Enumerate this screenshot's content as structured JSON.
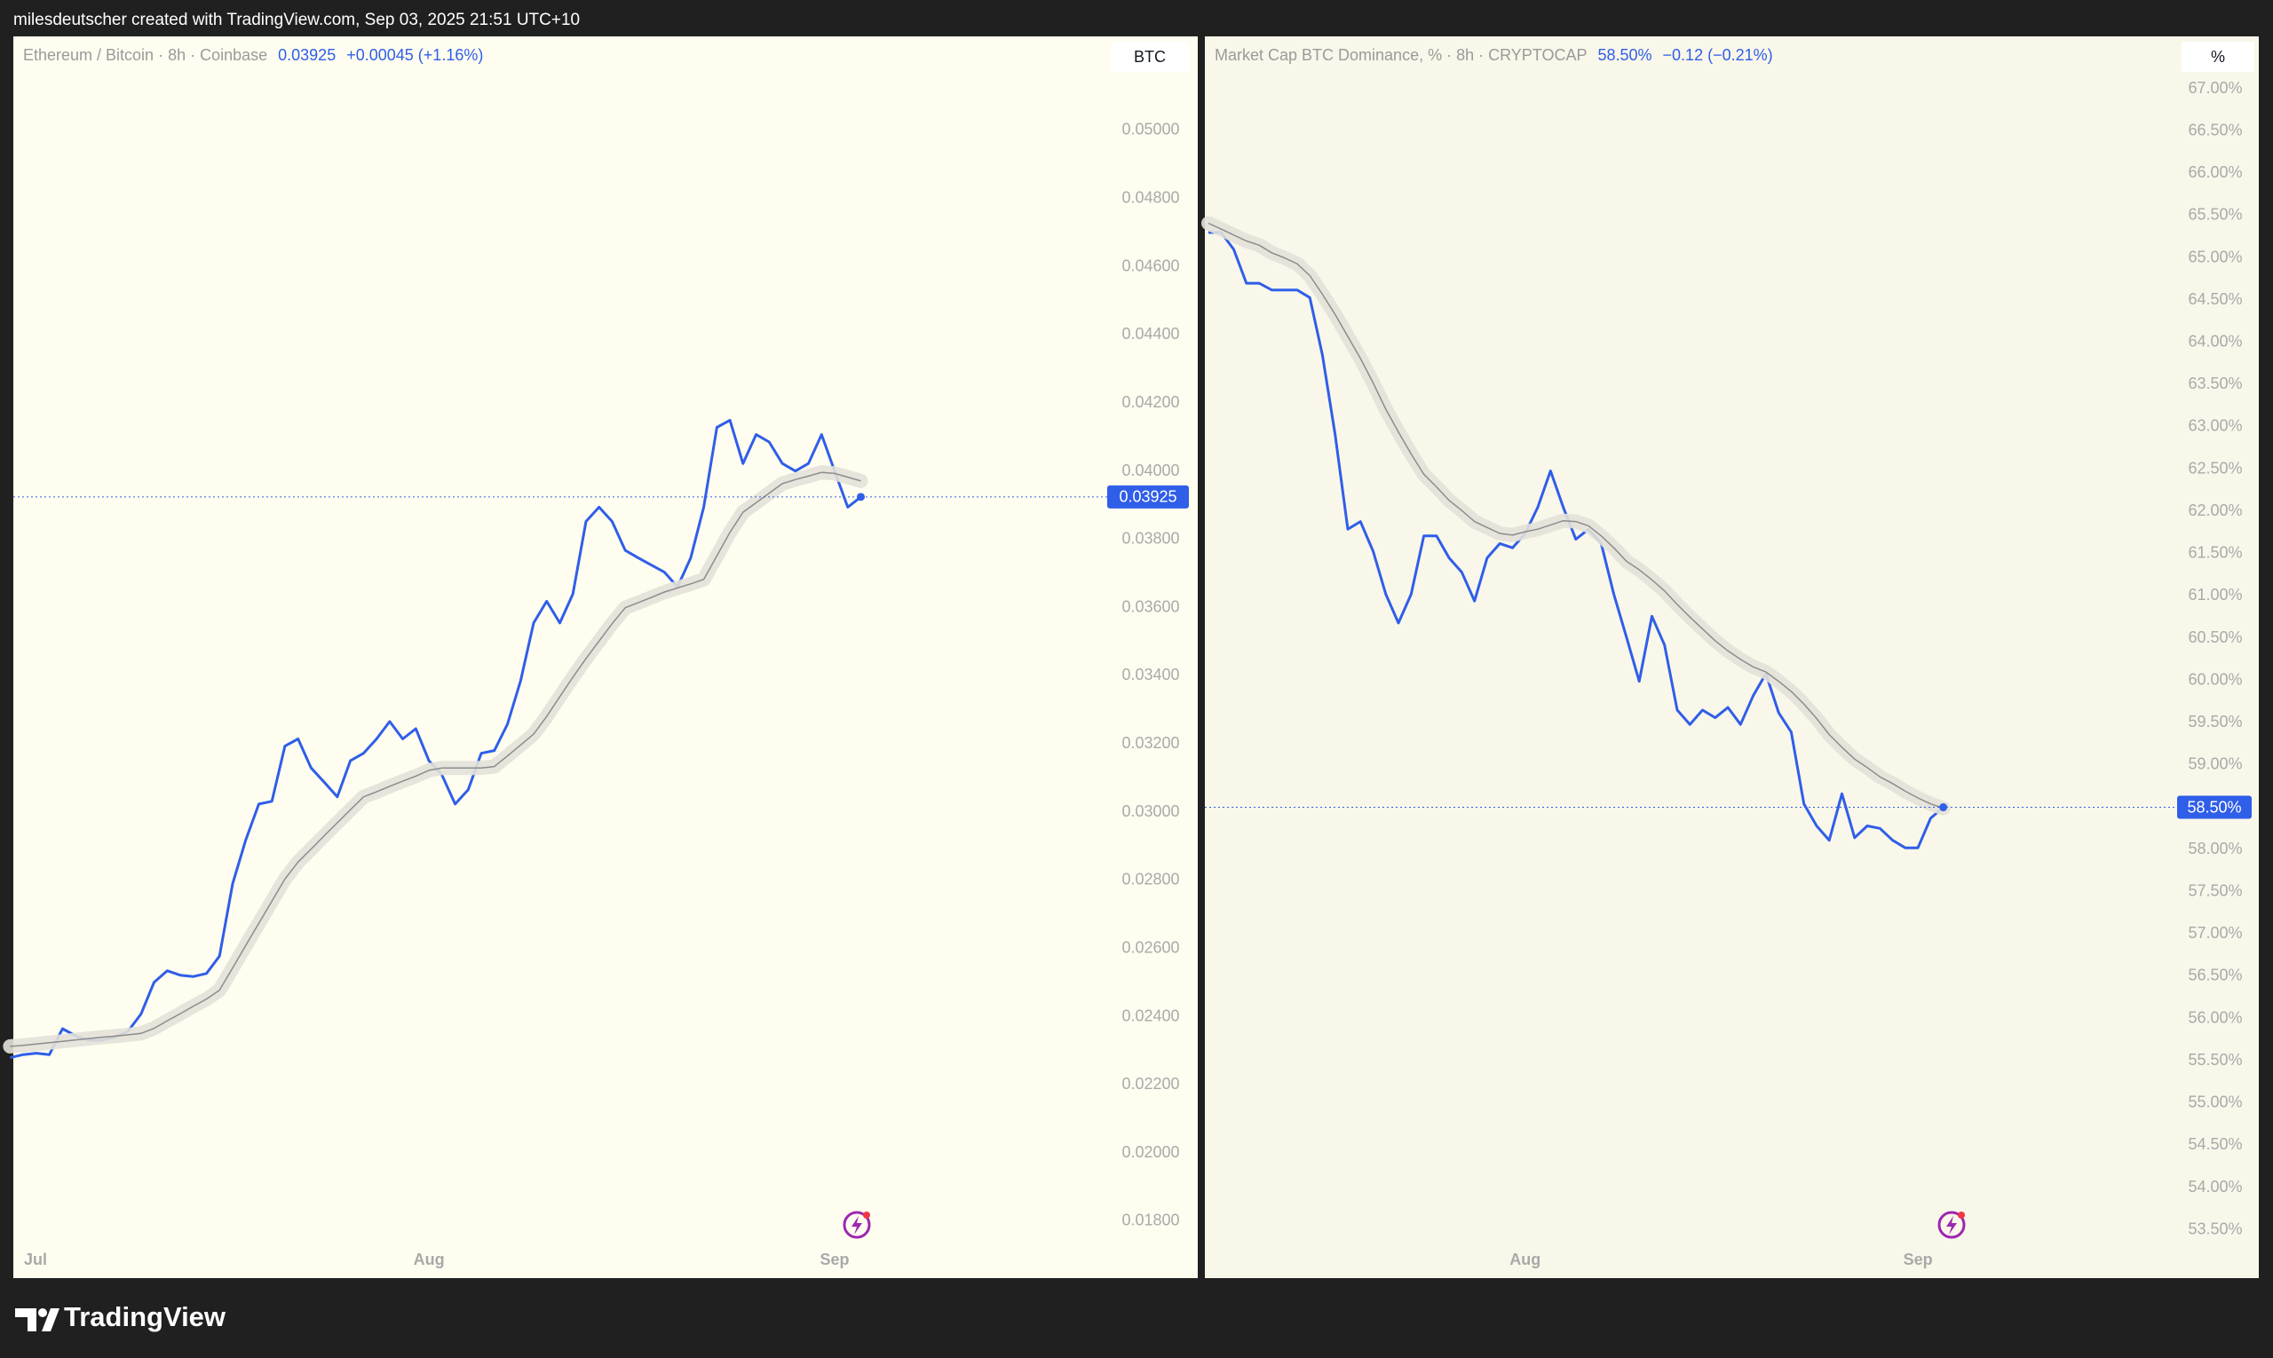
{
  "header": {
    "text": "milesdeutscher created with TradingView.com, Sep 03, 2025 21:51 UTC+10"
  },
  "chart_data": [
    {
      "type": "line",
      "title": "Ethereum / Bitcoin · 8h · Coinbase",
      "last_label": "0.03925",
      "change": "+0.00045 (+1.16%)",
      "unit": "BTC",
      "categories": [
        null,
        "Jul",
        null,
        null,
        null,
        null,
        null,
        null,
        null,
        null,
        null,
        null,
        null,
        null,
        null,
        null,
        null,
        null,
        null,
        null,
        null,
        null,
        null,
        null,
        null,
        null,
        null,
        null,
        null,
        null,
        null,
        null,
        "Aug",
        null,
        null,
        null,
        null,
        null,
        null,
        null,
        null,
        null,
        null,
        null,
        null,
        null,
        null,
        null,
        null,
        null,
        null,
        null,
        null,
        null,
        null,
        null,
        null,
        null,
        null,
        null,
        null,
        null,
        null,
        "Sep",
        null,
        null
      ],
      "series": [
        {
          "color": "#2f5ee8",
          "values": [
            0.0228,
            0.02289,
            0.02293,
            0.02289,
            0.02365,
            0.02344,
            0.02331,
            0.02331,
            0.0234,
            0.02357,
            0.02408,
            0.02501,
            0.02535,
            0.02522,
            0.02518,
            0.02527,
            0.02578,
            0.0279,
            0.02918,
            0.03024,
            0.03032,
            0.03194,
            0.03215,
            0.0313,
            0.03088,
            0.03045,
            0.03151,
            0.03173,
            0.03215,
            0.03266,
            0.03215,
            0.03245,
            0.03151,
            0.03109,
            0.03024,
            0.03066,
            0.03173,
            0.03181,
            0.03258,
            0.03385,
            0.03555,
            0.03619,
            0.03555,
            0.0364,
            0.03853,
            0.03895,
            0.03853,
            0.03768,
            0.03746,
            0.03725,
            0.03704,
            0.03661,
            0.03746,
            0.03895,
            0.04129,
            0.0415,
            0.04023,
            0.04108,
            0.04086,
            0.04023,
            0.04001,
            0.04023,
            0.04108,
            0.04001,
            0.03895,
            0.03925
          ]
        },
        {
          "color": "#8c8c8c",
          "band_color": "#e3e1d8",
          "values": [
            0.02313,
            0.02316,
            0.0232,
            0.02324,
            0.02328,
            0.02332,
            0.02336,
            0.0234,
            0.02343,
            0.02347,
            0.02351,
            0.02366,
            0.02388,
            0.02409,
            0.02431,
            0.02452,
            0.02478,
            0.02543,
            0.02609,
            0.02674,
            0.02739,
            0.02804,
            0.02854,
            0.02892,
            0.02931,
            0.02969,
            0.03007,
            0.03045,
            0.0306,
            0.03076,
            0.03091,
            0.03106,
            0.03123,
            0.0313,
            0.0313,
            0.0313,
            0.0313,
            0.03134,
            0.03165,
            0.03197,
            0.03229,
            0.03281,
            0.03339,
            0.03396,
            0.03451,
            0.03502,
            0.03553,
            0.036,
            0.03615,
            0.0363,
            0.03646,
            0.03658,
            0.0367,
            0.03683,
            0.03752,
            0.03821,
            0.0388,
            0.03908,
            0.03936,
            0.03964,
            0.03976,
            0.03986,
            0.03997,
            0.03994,
            0.03983,
            0.03972
          ]
        }
      ],
      "ylim": [
        0.0174,
        0.05276
      ],
      "yticks": [
        {
          "value": 0.018,
          "label": "0.01800"
        },
        {
          "value": 0.02,
          "label": "0.02000"
        },
        {
          "value": 0.022,
          "label": "0.02200"
        },
        {
          "value": 0.024,
          "label": "0.02400"
        },
        {
          "value": 0.026,
          "label": "0.02600"
        },
        {
          "value": 0.028,
          "label": "0.02800"
        },
        {
          "value": 0.03,
          "label": "0.03000"
        },
        {
          "value": 0.032,
          "label": "0.03200"
        },
        {
          "value": 0.034,
          "label": "0.03400"
        },
        {
          "value": 0.036,
          "label": "0.03600"
        },
        {
          "value": 0.038,
          "label": "0.03800"
        },
        {
          "value": 0.04,
          "label": "0.04000"
        },
        {
          "value": 0.042,
          "label": "0.04200"
        },
        {
          "value": 0.044,
          "label": "0.04400"
        },
        {
          "value": 0.046,
          "label": "0.04600"
        },
        {
          "value": 0.048,
          "label": "0.04800"
        },
        {
          "value": 0.05,
          "label": "0.05000"
        }
      ],
      "grid": false,
      "background": "#fffdf0"
    },
    {
      "type": "line",
      "title": "Market Cap BTC Dominance, % · 8h · CRYPTOCAP",
      "last_label": "58.50%",
      "change": "−0.12 (−0.21%)",
      "unit": "%",
      "categories": [
        null,
        null,
        null,
        null,
        null,
        null,
        null,
        null,
        null,
        null,
        null,
        null,
        null,
        null,
        null,
        null,
        null,
        null,
        null,
        null,
        null,
        null,
        null,
        null,
        null,
        "Aug",
        null,
        null,
        null,
        null,
        null,
        null,
        null,
        null,
        null,
        null,
        null,
        null,
        null,
        null,
        null,
        null,
        null,
        null,
        null,
        null,
        null,
        null,
        null,
        null,
        null,
        null,
        null,
        null,
        null,
        null,
        "Sep",
        null,
        null
      ],
      "series": [
        {
          "color": "#2f5ee8",
          "values": [
            65.3,
            65.3,
            65.1,
            64.7,
            64.7,
            64.62,
            64.62,
            64.62,
            64.53,
            63.85,
            62.91,
            61.79,
            61.88,
            61.53,
            61.02,
            60.68,
            61.02,
            61.71,
            61.71,
            61.45,
            61.28,
            60.94,
            61.45,
            61.62,
            61.57,
            61.74,
            62.05,
            62.48,
            62.05,
            61.67,
            61.79,
            61.62,
            61.02,
            60.51,
            59.99,
            60.76,
            60.42,
            59.65,
            59.48,
            59.65,
            59.56,
            59.68,
            59.48,
            59.82,
            60.08,
            59.62,
            59.39,
            58.54,
            58.28,
            58.11,
            58.66,
            58.14,
            58.28,
            58.25,
            58.11,
            58.02,
            58.02,
            58.37,
            58.5
          ]
        },
        {
          "color": "#8c8c8c",
          "band_color": "#e3e1d8",
          "values": [
            65.41,
            65.34,
            65.27,
            65.2,
            65.15,
            65.06,
            65.0,
            64.93,
            64.79,
            64.57,
            64.33,
            64.07,
            63.81,
            63.52,
            63.21,
            62.94,
            62.68,
            62.44,
            62.29,
            62.13,
            62.01,
            61.88,
            61.81,
            61.74,
            61.72,
            61.76,
            61.79,
            61.84,
            61.89,
            61.88,
            61.83,
            61.71,
            61.57,
            61.41,
            61.31,
            61.19,
            61.06,
            60.9,
            60.75,
            60.61,
            60.47,
            60.35,
            60.25,
            60.16,
            60.1,
            59.99,
            59.87,
            59.72,
            59.55,
            59.36,
            59.21,
            59.07,
            58.97,
            58.86,
            58.78,
            58.69,
            58.61,
            58.54,
            58.49
          ]
        }
      ],
      "ylim": [
        53.36,
        67.62
      ],
      "yticks": [
        {
          "value": 53.5,
          "label": "53.50%"
        },
        {
          "value": 54,
          "label": "54.00%"
        },
        {
          "value": 54.5,
          "label": "54.50%"
        },
        {
          "value": 55,
          "label": "55.00%"
        },
        {
          "value": 55.5,
          "label": "55.50%"
        },
        {
          "value": 56,
          "label": "56.00%"
        },
        {
          "value": 56.5,
          "label": "56.50%"
        },
        {
          "value": 57,
          "label": "57.00%"
        },
        {
          "value": 57.5,
          "label": "57.50%"
        },
        {
          "value": 58,
          "label": "58.00%"
        },
        {
          "value": 58.5,
          "label": "58.50%"
        },
        {
          "value": 59,
          "label": "59.00%"
        },
        {
          "value": 59.5,
          "label": "59.50%"
        },
        {
          "value": 60,
          "label": "60.00%"
        },
        {
          "value": 60.5,
          "label": "60.50%"
        },
        {
          "value": 61,
          "label": "61.00%"
        },
        {
          "value": 61.5,
          "label": "61.50%"
        },
        {
          "value": 62,
          "label": "62.00%"
        },
        {
          "value": 62.5,
          "label": "62.50%"
        },
        {
          "value": 63,
          "label": "63.00%"
        },
        {
          "value": 63.5,
          "label": "63.50%"
        },
        {
          "value": 64,
          "label": "64.00%"
        },
        {
          "value": 64.5,
          "label": "64.50%"
        },
        {
          "value": 65,
          "label": "65.00%"
        },
        {
          "value": 65.5,
          "label": "65.50%"
        },
        {
          "value": 66,
          "label": "66.00%"
        },
        {
          "value": 66.5,
          "label": "66.50%"
        },
        {
          "value": 67,
          "label": "67.00%"
        }
      ],
      "grid": false,
      "background": "#f9f7ea"
    }
  ],
  "footer": {
    "logo": "TradingView"
  }
}
